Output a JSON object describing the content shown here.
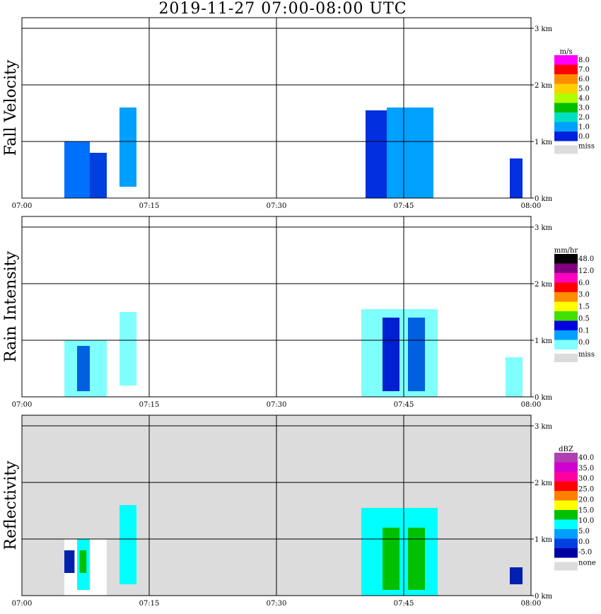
{
  "title": "2019-11-27   07:00-08:00 UTC",
  "x_tick_labels": [
    "07:00",
    "07:15",
    "07:30",
    "07:45",
    "08:00"
  ],
  "y_tick_labels": [
    "0 km",
    "1 km",
    "2 km",
    "3 km"
  ],
  "chart_data": [
    {
      "type": "heatmap",
      "ylabel": "Fall Velocity",
      "xlim": [
        "07:00",
        "08:00"
      ],
      "ylim_km": [
        0,
        3.2
      ],
      "background": "#ffffff",
      "legend": {
        "unit": "m/s",
        "labels": [
          "8.0",
          "7.0",
          "6.0",
          "5.0",
          "4.0",
          "3.0",
          "2.0",
          "1.0",
          "0.0"
        ],
        "colors": [
          "#ff00ff",
          "#ff0000",
          "#ff8c00",
          "#ffd000",
          "#b0ff00",
          "#00c000",
          "#00e0c0",
          "#00a0ff",
          "#0020e0"
        ],
        "miss_label": "miss"
      },
      "echoes": [
        {
          "t_start_min": 5.0,
          "t_end_min": 8.0,
          "h_bottom_km": 0.0,
          "h_top_km": 1.0,
          "color": "#0070ff"
        },
        {
          "t_start_min": 8.0,
          "t_end_min": 10.0,
          "h_bottom_km": 0.0,
          "h_top_km": 0.8,
          "color": "#0040e0"
        },
        {
          "t_start_min": 11.5,
          "t_end_min": 13.5,
          "h_bottom_km": 0.2,
          "h_top_km": 1.6,
          "color": "#00a0ff"
        },
        {
          "t_start_min": 40.5,
          "t_end_min": 47.0,
          "h_bottom_km": 0.0,
          "h_top_km": 1.55,
          "color": "#0030e0"
        },
        {
          "t_start_min": 43.0,
          "t_end_min": 48.5,
          "h_bottom_km": 0.0,
          "h_top_km": 1.6,
          "color": "#00a0ff"
        },
        {
          "t_start_min": 57.5,
          "t_end_min": 59.0,
          "h_bottom_km": 0.0,
          "h_top_km": 0.7,
          "color": "#0030e0"
        }
      ]
    },
    {
      "type": "heatmap",
      "ylabel": "Rain Intensity",
      "xlim": [
        "07:00",
        "08:00"
      ],
      "ylim_km": [
        0,
        3.2
      ],
      "background": "#ffffff",
      "legend": {
        "unit": "mm/hr",
        "labels": [
          "48.0",
          "12.0",
          "6.0",
          "3.0",
          "1.5",
          "0.5",
          "0.1",
          "0.0"
        ],
        "colors": [
          "#000000",
          "#800080",
          "#ff00c0",
          "#ff0000",
          "#ff8c00",
          "#ffff00",
          "#40e000",
          "#0000e0",
          "#00a0ff",
          "#80ffff"
        ],
        "miss_label": "miss"
      },
      "echoes": [
        {
          "t_start_min": 5.0,
          "t_end_min": 10.0,
          "h_bottom_km": 0.0,
          "h_top_km": 1.0,
          "color": "#80ffff"
        },
        {
          "t_start_min": 6.5,
          "t_end_min": 8.0,
          "h_bottom_km": 0.1,
          "h_top_km": 0.9,
          "color": "#0060e0"
        },
        {
          "t_start_min": 11.5,
          "t_end_min": 13.5,
          "h_bottom_km": 0.2,
          "h_top_km": 1.5,
          "color": "#80ffff"
        },
        {
          "t_start_min": 40.0,
          "t_end_min": 49.0,
          "h_bottom_km": 0.0,
          "h_top_km": 1.55,
          "color": "#80ffff"
        },
        {
          "t_start_min": 42.5,
          "t_end_min": 44.5,
          "h_bottom_km": 0.1,
          "h_top_km": 1.4,
          "color": "#0020d0"
        },
        {
          "t_start_min": 45.5,
          "t_end_min": 47.5,
          "h_bottom_km": 0.1,
          "h_top_km": 1.4,
          "color": "#0060e0"
        },
        {
          "t_start_min": 57.0,
          "t_end_min": 59.0,
          "h_bottom_km": 0.0,
          "h_top_km": 0.7,
          "color": "#80ffff"
        }
      ]
    },
    {
      "type": "heatmap",
      "ylabel": "Reflectivity",
      "xlim": [
        "07:00",
        "08:00"
      ],
      "ylim_km": [
        0,
        3.2
      ],
      "background": "#dcdcdc",
      "legend": {
        "unit": "dBZ",
        "labels": [
          "40.0",
          "35.0",
          "30.0",
          "25.0",
          "20.0",
          "15.0",
          "10.0",
          "5.0",
          "0.0",
          "-5.0"
        ],
        "colors": [
          "#b040b0",
          "#d000d0",
          "#ff00a0",
          "#ff0000",
          "#ff8000",
          "#ffff00",
          "#00c000",
          "#00ffff",
          "#00a0ff",
          "#0040e0",
          "#0000a0"
        ],
        "none_label": "none"
      },
      "echoes": [
        {
          "t_start_min": 5.0,
          "t_end_min": 10.0,
          "h_bottom_km": 0.0,
          "h_top_km": 1.0,
          "color": "#ffffff"
        },
        {
          "t_start_min": 5.0,
          "t_end_min": 6.2,
          "h_bottom_km": 0.4,
          "h_top_km": 0.8,
          "color": "#0020b0"
        },
        {
          "t_start_min": 6.5,
          "t_end_min": 8.0,
          "h_bottom_km": 0.1,
          "h_top_km": 1.0,
          "color": "#00ffff"
        },
        {
          "t_start_min": 6.8,
          "t_end_min": 7.6,
          "h_bottom_km": 0.4,
          "h_top_km": 0.8,
          "color": "#00c000"
        },
        {
          "t_start_min": 11.5,
          "t_end_min": 13.5,
          "h_bottom_km": 0.2,
          "h_top_km": 1.6,
          "color": "#00ffff"
        },
        {
          "t_start_min": 40.0,
          "t_end_min": 49.0,
          "h_bottom_km": 0.0,
          "h_top_km": 1.55,
          "color": "#00ffff"
        },
        {
          "t_start_min": 42.5,
          "t_end_min": 44.5,
          "h_bottom_km": 0.1,
          "h_top_km": 1.2,
          "color": "#00c000"
        },
        {
          "t_start_min": 45.5,
          "t_end_min": 47.5,
          "h_bottom_km": 0.1,
          "h_top_km": 1.2,
          "color": "#00c000"
        },
        {
          "t_start_min": 57.5,
          "t_end_min": 59.0,
          "h_bottom_km": 0.2,
          "h_top_km": 0.5,
          "color": "#0020b0"
        }
      ]
    }
  ]
}
